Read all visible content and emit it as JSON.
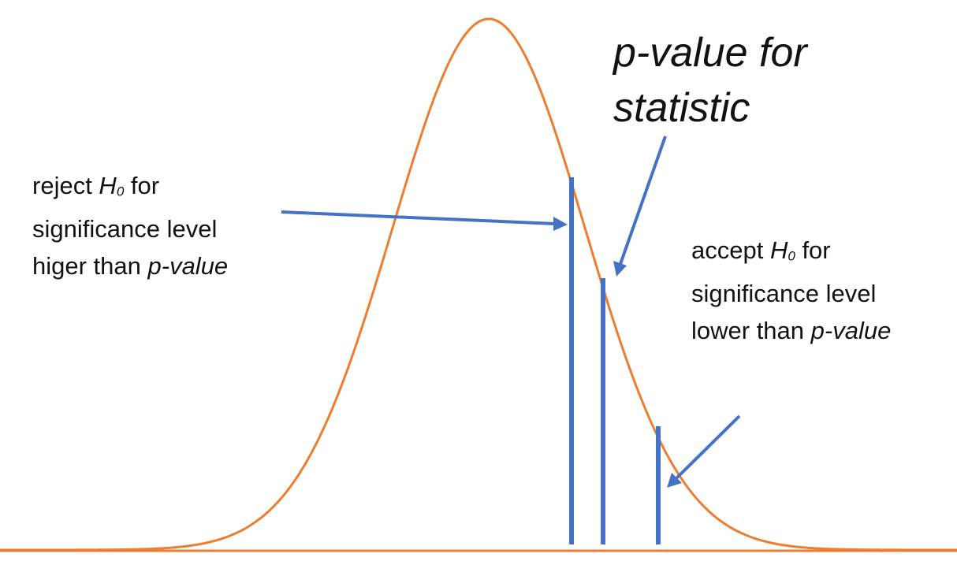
{
  "title_lines": [
    "p-value for",
    "statistic"
  ],
  "reject_label": {
    "line1_prefix": "reject ",
    "h": "H",
    "sub": "0",
    "line1_suffix": " for",
    "line2": "significance level",
    "line3_prefix": "higer than ",
    "line3_italic": "p-value"
  },
  "accept_label": {
    "line1_prefix": "accept ",
    "h": "H",
    "sub": "0",
    "line1_suffix": " for",
    "line2": "significance level",
    "line3_prefix": "lower than ",
    "line3_italic": "p-value"
  },
  "colors": {
    "curve": "#ED7D31",
    "markers": "#4472C4",
    "text": "#111111"
  },
  "icons": [
    "arrow-icon"
  ]
}
